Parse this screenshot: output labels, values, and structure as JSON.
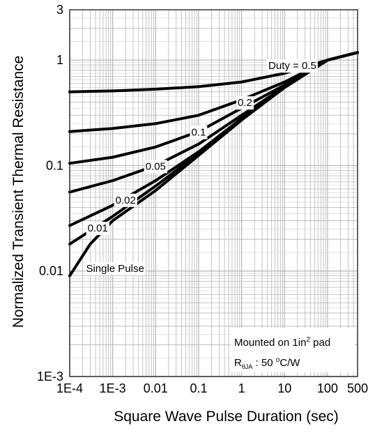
{
  "chart_data": {
    "type": "line",
    "xlabel": "Square Wave Pulse Duration (sec)",
    "ylabel": "Normalized Transient Thermal Resistance",
    "x_scale": "log",
    "y_scale": "log",
    "xlim": [
      0.0001,
      500
    ],
    "ylim": [
      0.001,
      3
    ],
    "x_ticks": [
      {
        "value": 0.0001,
        "label": "1E-4"
      },
      {
        "value": 0.001,
        "label": "1E-3"
      },
      {
        "value": 0.01,
        "label": "0.01"
      },
      {
        "value": 0.1,
        "label": "0.1"
      },
      {
        "value": 1,
        "label": "1"
      },
      {
        "value": 10,
        "label": "10"
      },
      {
        "value": 100,
        "label": "100"
      },
      {
        "value": 500,
        "label": "500"
      }
    ],
    "y_ticks": [
      {
        "value": 0.001,
        "label": "1E-3"
      },
      {
        "value": 0.01,
        "label": "0.01"
      },
      {
        "value": 0.1,
        "label": "0.1"
      },
      {
        "value": 1,
        "label": "1"
      },
      {
        "value": 3,
        "label": "3"
      }
    ],
    "grid": true,
    "series": [
      {
        "name": "0.5",
        "label": "Duty =  0.5",
        "x": [
          0.0001,
          0.001,
          0.01,
          0.1,
          1,
          10,
          100,
          500
        ],
        "y": [
          0.5,
          0.51,
          0.53,
          0.56,
          0.62,
          0.75,
          1.0,
          1.18
        ]
      },
      {
        "name": "0.2",
        "label": "0.2",
        "x": [
          0.0001,
          0.001,
          0.01,
          0.1,
          1,
          10,
          100,
          500
        ],
        "y": [
          0.21,
          0.225,
          0.25,
          0.3,
          0.42,
          0.62,
          1.0,
          1.18
        ]
      },
      {
        "name": "0.1",
        "label": "0.1",
        "x": [
          0.0001,
          0.001,
          0.01,
          0.1,
          1,
          10,
          100,
          500
        ],
        "y": [
          0.105,
          0.12,
          0.15,
          0.21,
          0.35,
          0.58,
          1.0,
          1.18
        ]
      },
      {
        "name": "0.05",
        "label": "0.05",
        "x": [
          0.0001,
          0.001,
          0.01,
          0.1,
          1,
          10,
          100,
          500
        ],
        "y": [
          0.056,
          0.072,
          0.1,
          0.16,
          0.3,
          0.56,
          1.0,
          1.18
        ]
      },
      {
        "name": "0.02",
        "label": "0.02",
        "x": [
          0.0001,
          0.001,
          0.01,
          0.1,
          1,
          10,
          100,
          500
        ],
        "y": [
          0.027,
          0.042,
          0.072,
          0.135,
          0.28,
          0.55,
          1.0,
          1.18
        ]
      },
      {
        "name": "0.01",
        "label": "0.01",
        "x": [
          0.0001,
          0.001,
          0.01,
          0.1,
          1,
          10,
          100,
          500
        ],
        "y": [
          0.018,
          0.033,
          0.064,
          0.13,
          0.275,
          0.55,
          1.0,
          1.18
        ]
      },
      {
        "name": "Single Pulse",
        "label": "Single Pulse",
        "x": [
          0.0001,
          0.0003,
          0.001,
          0.01,
          0.1,
          1,
          10,
          100,
          500
        ],
        "y": [
          0.009,
          0.018,
          0.03,
          0.058,
          0.125,
          0.27,
          0.55,
          1.0,
          1.18
        ]
      }
    ],
    "annotation": {
      "line1_prefix": "Mounted on 1in",
      "line1_sup": "2",
      "line1_suffix": " pad",
      "line2_prefix": "R",
      "line2_sub": "θJA",
      "line2_value": " : 50 ",
      "line2_sup": "o",
      "line2_suffix": "C/W"
    },
    "colors": {
      "line": "#000000",
      "grid": "#b5b5b5",
      "background": "#ffffff"
    }
  }
}
